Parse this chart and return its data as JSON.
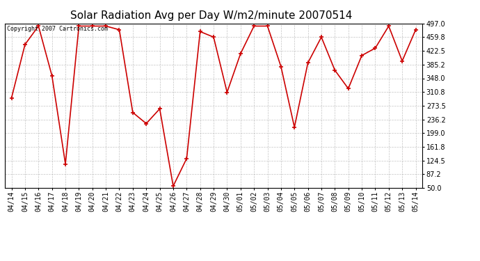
{
  "title": "Solar Radiation Avg per Day W/m2/minute 20070514",
  "copyright": "Copyright 2007 Cartronics.com",
  "labels": [
    "04/14",
    "04/15",
    "04/16",
    "04/17",
    "04/18",
    "04/19",
    "04/20",
    "04/21",
    "04/22",
    "04/23",
    "04/24",
    "04/25",
    "04/26",
    "04/27",
    "04/28",
    "04/29",
    "04/30",
    "05/01",
    "05/02",
    "05/03",
    "05/04",
    "05/05",
    "05/06",
    "05/07",
    "05/08",
    "05/09",
    "05/10",
    "05/11",
    "05/12",
    "05/13",
    "05/14"
  ],
  "values": [
    295,
    440,
    490,
    355,
    115,
    490,
    490,
    490,
    480,
    255,
    225,
    265,
    55,
    130,
    475,
    460,
    310,
    415,
    490,
    490,
    380,
    215,
    390,
    460,
    370,
    320,
    410,
    430,
    490,
    395,
    480
  ],
  "y_ticks": [
    50.0,
    87.2,
    124.5,
    161.8,
    199.0,
    236.2,
    273.5,
    310.8,
    348.0,
    385.2,
    422.5,
    459.8,
    497.0
  ],
  "ymin": 50.0,
  "ymax": 497.0,
  "line_color": "#cc0000",
  "marker_color": "#cc0000",
  "bg_color": "#ffffff",
  "plot_bg_color": "#ffffff",
  "grid_color": "#aaaaaa",
  "title_fontsize": 11,
  "tick_fontsize": 7,
  "copyright_fontsize": 6
}
